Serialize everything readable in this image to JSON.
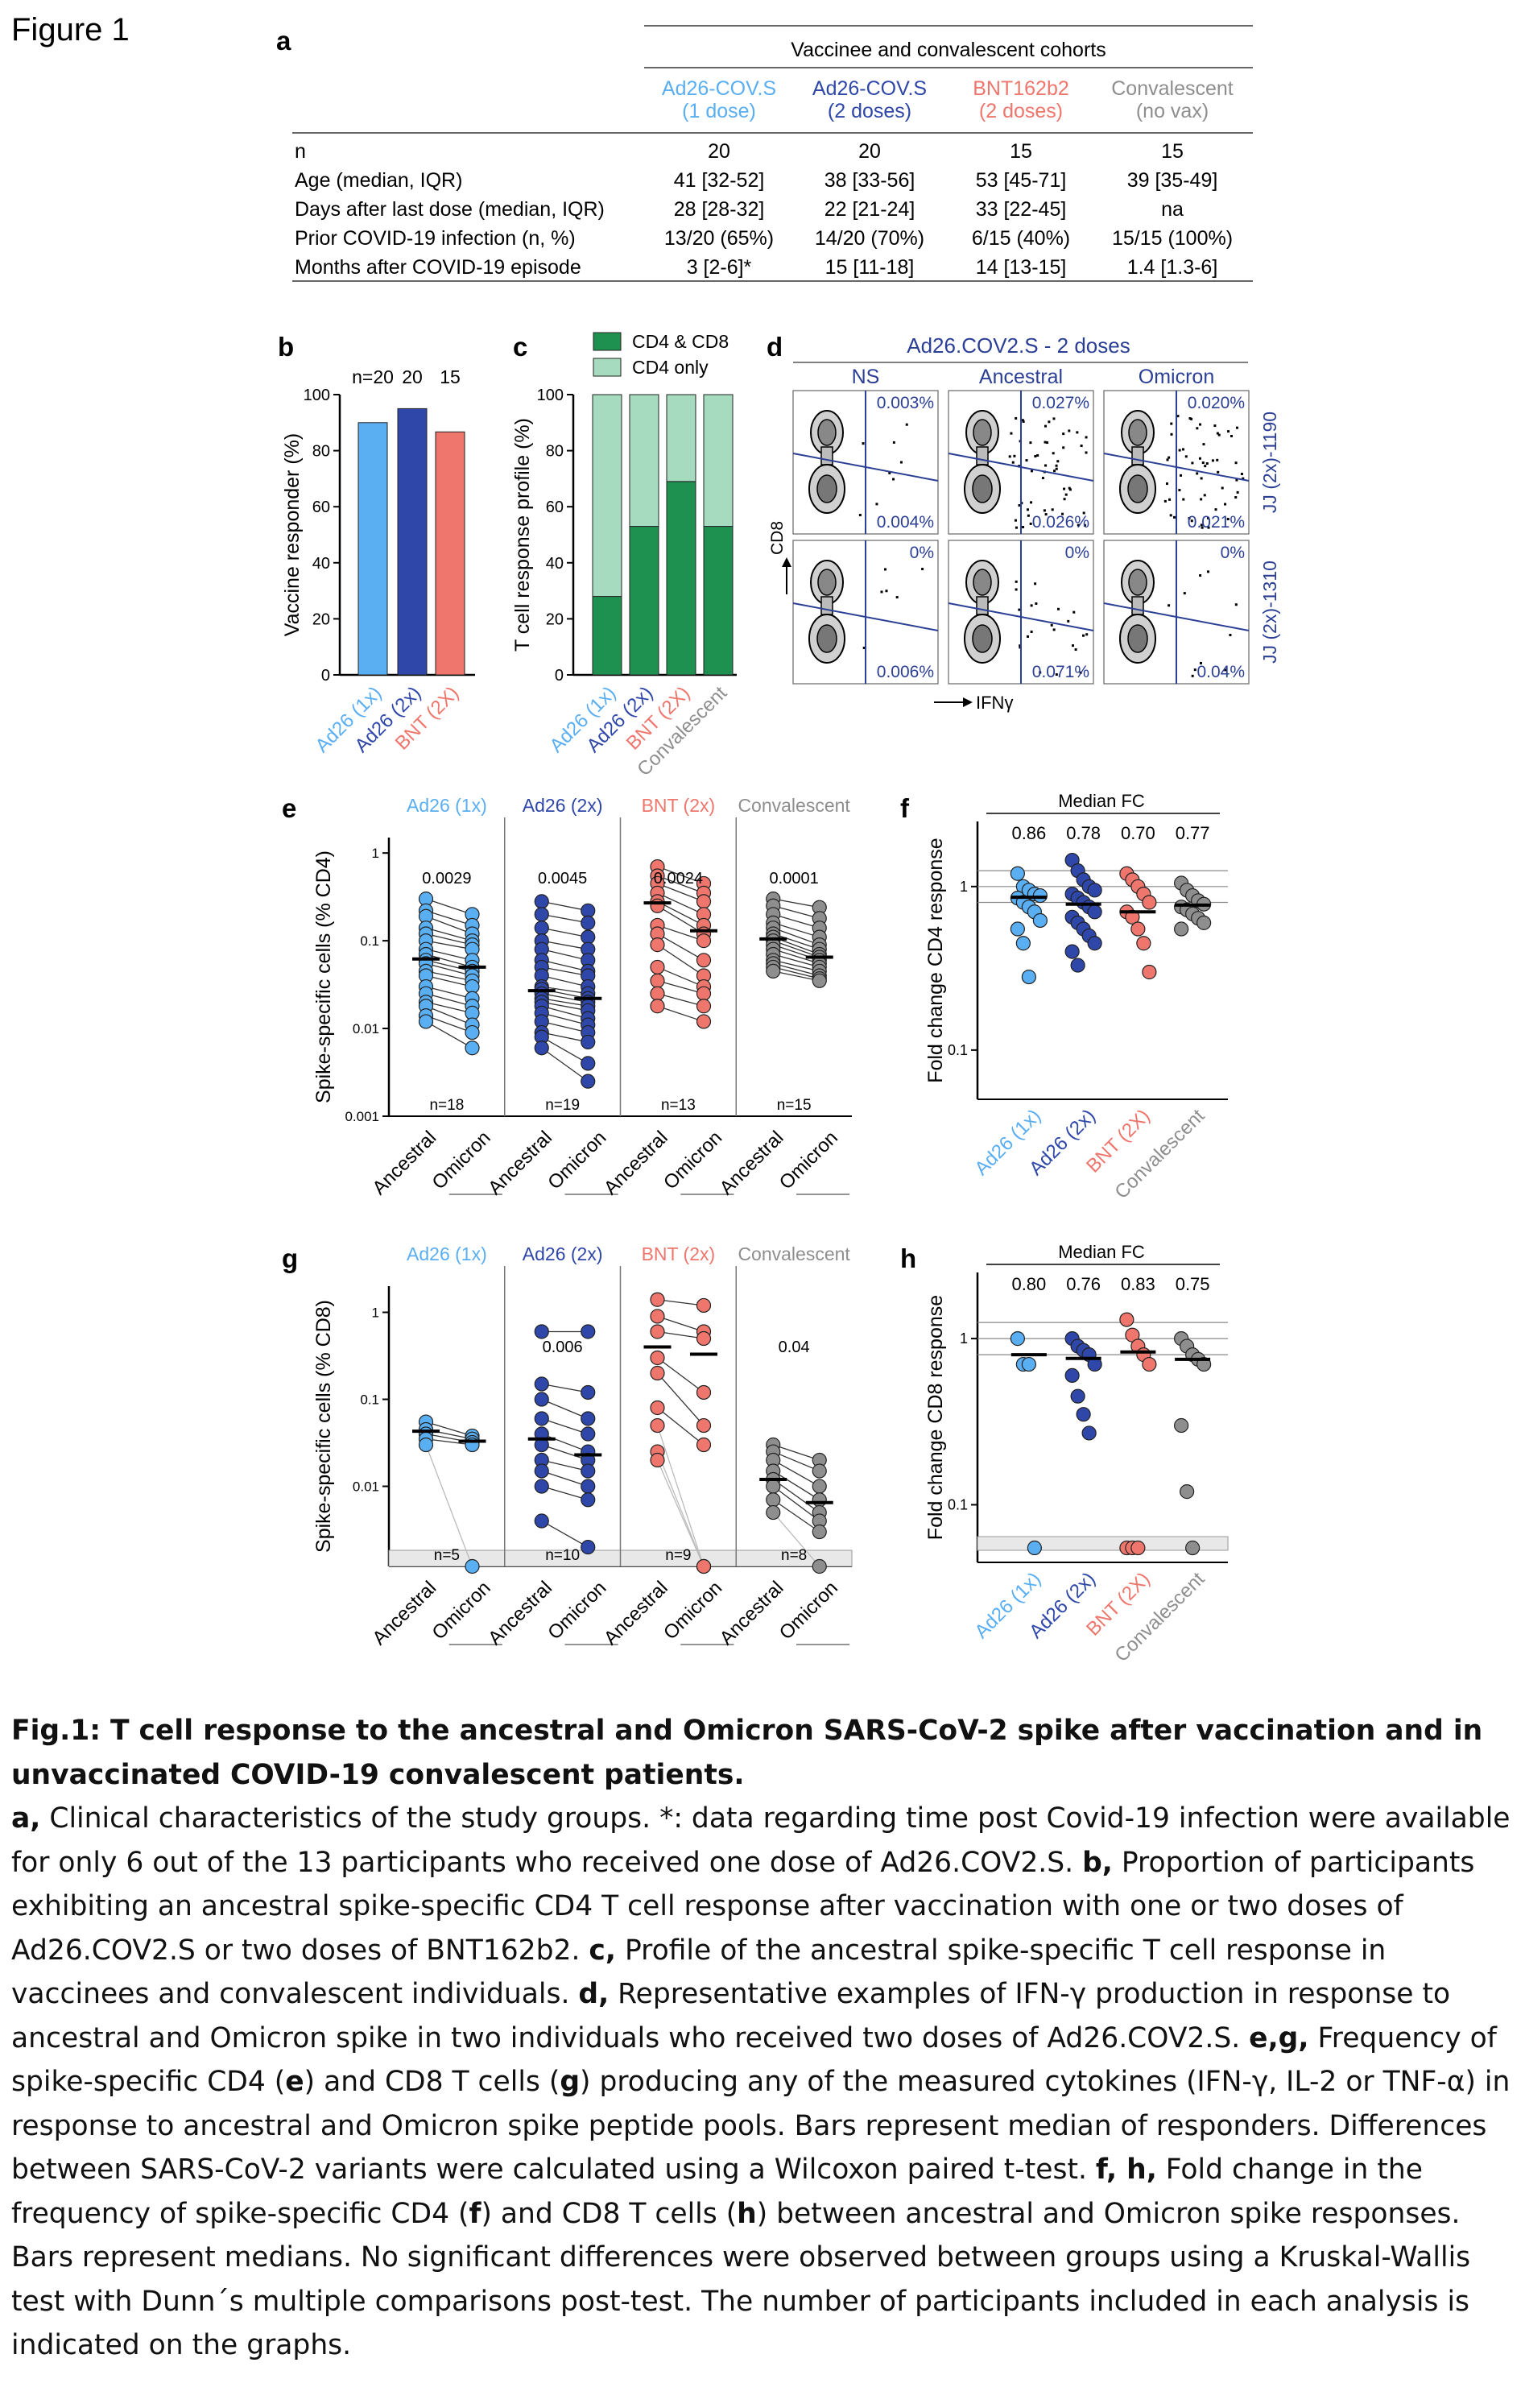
{
  "figure_label": "Figure 1",
  "colors": {
    "ad26_1x": "#5aaef2",
    "ad26_2x": "#2e47a8",
    "bnt": "#ee766c",
    "conv": "#8e8e8e",
    "cd4cd8": "#1e9150",
    "cd4only": "#a6dbbf",
    "gate": "#2b3f95"
  },
  "panel_a": {
    "label": "a",
    "header": "Vaccinee and convalescent cohorts",
    "columns": [
      {
        "name": "Ad26-COV.S",
        "sub": "(1 dose)",
        "color": "#5aaef2"
      },
      {
        "name": "Ad26-COV.S",
        "sub": "(2 doses)",
        "color": "#2e47a8"
      },
      {
        "name": "BNT162b2",
        "sub": "(2 doses)",
        "color": "#ee766c"
      },
      {
        "name": "Convalescent",
        "sub": "(no vax)",
        "color": "#8e8e8e"
      }
    ],
    "rows": [
      {
        "label": "n",
        "values": [
          "20",
          "20",
          "15",
          "15"
        ]
      },
      {
        "label": "Age (median, IQR)",
        "values": [
          "41 [32-52]",
          "38 [33-56]",
          "53 [45-71]",
          "39 [35-49]"
        ]
      },
      {
        "label": "Days after last dose (median, IQR)",
        "values": [
          "28 [28-32]",
          "22 [21-24]",
          "33 [22-45]",
          "na"
        ]
      },
      {
        "label": "Prior COVID-19 infection (n, %)",
        "values": [
          "13/20 (65%)",
          "14/20 (70%)",
          "6/15 (40%)",
          "15/15 (100%)"
        ]
      },
      {
        "label": "Months after COVID-19 episode",
        "values": [
          "3 [2-6]*",
          "15 [11-18]",
          "14 [13-15]",
          "1.4 [1.3-6]"
        ]
      }
    ]
  },
  "chart_data": [
    {
      "panel": "b",
      "type": "bar",
      "ylabel": "Vaccine responder (%)",
      "ylim": [
        0,
        100
      ],
      "yticks": [
        "0",
        "20",
        "40",
        "60",
        "80",
        "100"
      ],
      "categories": [
        "Ad26 (1x)",
        "Ad26 (2x)",
        "BNT (2X)"
      ],
      "values": [
        90,
        95,
        86.7
      ],
      "n_labels": [
        "n=20",
        "20",
        "15"
      ]
    },
    {
      "panel": "c",
      "type": "bar",
      "stacked": true,
      "ylabel": "T cell response profile (%)",
      "ylim": [
        0,
        100
      ],
      "yticks": [
        "0",
        "20",
        "40",
        "60",
        "80",
        "100"
      ],
      "categories": [
        "Ad26 (1x)",
        "Ad26 (2x)",
        "BNT (2X)",
        "Convalescent"
      ],
      "series": [
        {
          "name": "CD4 & CD8",
          "values": [
            28,
            53,
            69,
            53
          ]
        },
        {
          "name": "CD4 only",
          "values": [
            72,
            47,
            31,
            47
          ]
        }
      ]
    },
    {
      "panel": "d",
      "type": "scatter",
      "title": "Ad26.COV2.S - 2 doses",
      "columns": [
        "NS",
        "Ancestral",
        "Omicron"
      ],
      "rows": [
        "JJ (2x)-1190",
        "JJ (2x)-1310"
      ],
      "xlabel": "IFNγ",
      "ylabel": "CD8",
      "gates": [
        [
          {
            "upper": "0.003%",
            "lower": "0.004%"
          },
          {
            "upper": "0.027%",
            "lower": "0.026%"
          },
          {
            "upper": "0.020%",
            "lower": "0.021%"
          }
        ],
        [
          {
            "upper": "0%",
            "lower": "0.006%"
          },
          {
            "upper": "0%",
            "lower": "0.071%"
          },
          {
            "upper": "0%",
            "lower": "0.04%"
          }
        ]
      ]
    },
    {
      "panel": "e",
      "type": "scatter",
      "paired": true,
      "ylabel": "Spike-specific cells (% CD4)",
      "yscale": "log",
      "ylim": [
        0.001,
        1.5
      ],
      "yticks": [
        "0.001",
        "0.01",
        "0.1",
        "1"
      ],
      "groups": [
        {
          "name": "Ad26 (1x)",
          "p": "0.0029",
          "n": "n=18",
          "median": [
            0.062,
            0.05
          ],
          "ancestral": [
            0.3,
            0.22,
            0.19,
            0.14,
            0.12,
            0.1,
            0.08,
            0.07,
            0.06,
            0.055,
            0.045,
            0.04,
            0.03,
            0.025,
            0.02,
            0.018,
            0.014,
            0.012
          ],
          "omicron": [
            0.2,
            0.15,
            0.12,
            0.1,
            0.09,
            0.08,
            0.06,
            0.05,
            0.045,
            0.04,
            0.035,
            0.03,
            0.022,
            0.018,
            0.015,
            0.011,
            0.009,
            0.006
          ]
        },
        {
          "name": "Ad26 (2x)",
          "p": "0.0045",
          "n": "n=19",
          "median": [
            0.027,
            0.022
          ],
          "ancestral": [
            0.28,
            0.2,
            0.14,
            0.1,
            0.08,
            0.06,
            0.05,
            0.04,
            0.03,
            0.028,
            0.025,
            0.022,
            0.02,
            0.018,
            0.015,
            0.012,
            0.009,
            0.008,
            0.006
          ],
          "omicron": [
            0.22,
            0.16,
            0.11,
            0.08,
            0.06,
            0.045,
            0.04,
            0.03,
            0.025,
            0.022,
            0.02,
            0.018,
            0.016,
            0.013,
            0.011,
            0.009,
            0.007,
            0.004,
            0.0025
          ]
        },
        {
          "name": "BNT (2x)",
          "p": "0.0024",
          "n": "n=13",
          "median": [
            0.27,
            0.13
          ],
          "ancestral": [
            0.7,
            0.55,
            0.45,
            0.35,
            0.28,
            0.25,
            0.15,
            0.12,
            0.09,
            0.05,
            0.035,
            0.025,
            0.018
          ],
          "omicron": [
            0.45,
            0.35,
            0.28,
            0.2,
            0.15,
            0.12,
            0.1,
            0.06,
            0.04,
            0.03,
            0.025,
            0.018,
            0.012
          ]
        },
        {
          "name": "Convalescent",
          "p": "0.0001",
          "n": "n=15",
          "median": [
            0.105,
            0.065
          ],
          "ancestral": [
            0.3,
            0.25,
            0.2,
            0.16,
            0.14,
            0.12,
            0.11,
            0.1,
            0.09,
            0.08,
            0.07,
            0.06,
            0.055,
            0.05,
            0.045
          ],
          "omicron": [
            0.24,
            0.18,
            0.14,
            0.11,
            0.09,
            0.08,
            0.07,
            0.065,
            0.06,
            0.055,
            0.05,
            0.045,
            0.04,
            0.037,
            0.035
          ]
        }
      ]
    },
    {
      "panel": "f",
      "type": "scatter",
      "title": "Median FC",
      "ylabel": "Fold change CD4 response",
      "yscale": "log",
      "ylim": [
        0.05,
        2.5
      ],
      "yticks": [
        "0.1",
        "1"
      ],
      "categories": [
        "Ad26 (1x)",
        "Ad26 (2x)",
        "BNT (2X)",
        "Convalescent"
      ],
      "medians": [
        "0.86",
        "0.78",
        "0.70",
        "0.77"
      ],
      "median_values": [
        0.86,
        0.78,
        0.7,
        0.77
      ],
      "values": [
        [
          1.2,
          1.0,
          0.95,
          0.9,
          0.88,
          0.85,
          0.8,
          0.75,
          0.7,
          0.62,
          0.55,
          0.45,
          0.28
        ],
        [
          1.45,
          1.25,
          1.1,
          1.0,
          0.95,
          0.9,
          0.85,
          0.8,
          0.75,
          0.7,
          0.65,
          0.6,
          0.55,
          0.5,
          0.45,
          0.4,
          0.33
        ],
        [
          1.2,
          1.1,
          1.0,
          0.9,
          0.8,
          0.7,
          0.65,
          0.55,
          0.45,
          0.3
        ],
        [
          1.05,
          0.95,
          0.88,
          0.82,
          0.78,
          0.75,
          0.72,
          0.68,
          0.64,
          0.6,
          0.55
        ]
      ]
    },
    {
      "panel": "g",
      "type": "scatter",
      "paired": true,
      "ylabel": "Spike-specific cells (% CD8)",
      "yscale": "log",
      "ylim": [
        0.0012,
        2
      ],
      "yticks": [
        "0.01",
        "0.1",
        "1"
      ],
      "groups": [
        {
          "name": "Ad26 (1x)",
          "p": "",
          "n": "n=5",
          "median": [
            0.043,
            0.033
          ],
          "ancestral": [
            0.055,
            0.045,
            0.04,
            0.035,
            0.03
          ],
          "omicron": [
            0.038,
            0.035,
            0.032,
            0.03,
            0.0012
          ]
        },
        {
          "name": "Ad26 (2x)",
          "p": "0.006",
          "n": "n=10",
          "median": [
            0.035,
            0.023
          ],
          "ancestral": [
            0.6,
            0.15,
            0.1,
            0.06,
            0.04,
            0.03,
            0.02,
            0.015,
            0.01,
            0.004
          ],
          "omicron": [
            0.6,
            0.12,
            0.06,
            0.04,
            0.025,
            0.02,
            0.015,
            0.01,
            0.007,
            0.002
          ]
        },
        {
          "name": "BNT (2x)",
          "p": "",
          "n": "n=9",
          "median": [
            0.4,
            0.33
          ],
          "ancestral": [
            1.4,
            0.9,
            0.6,
            0.3,
            0.2,
            0.08,
            0.05,
            0.025,
            0.02
          ],
          "omicron": [
            1.2,
            0.6,
            0.5,
            0.12,
            0.05,
            0.03,
            0.0012,
            0.0012,
            0.0012
          ]
        },
        {
          "name": "Convalescent",
          "p": "0.04",
          "n": "n=8",
          "median": [
            0.012,
            0.0065
          ],
          "ancestral": [
            0.03,
            0.025,
            0.02,
            0.015,
            0.012,
            0.01,
            0.007,
            0.005
          ],
          "omicron": [
            0.02,
            0.015,
            0.01,
            0.007,
            0.005,
            0.004,
            0.003,
            0.0012
          ]
        }
      ]
    },
    {
      "panel": "h",
      "type": "scatter",
      "title": "Median FC",
      "ylabel": "Fold change CD8 response",
      "yscale": "log",
      "ylim": [
        0.045,
        2.5
      ],
      "yticks": [
        "0.1",
        "1"
      ],
      "categories": [
        "Ad26 (1x)",
        "Ad26 (2x)",
        "BNT (2X)",
        "Convalescent"
      ],
      "medians": [
        "0.80",
        "0.76",
        "0.83",
        "0.75"
      ],
      "median_values": [
        0.8,
        0.76,
        0.83,
        0.75
      ],
      "values": [
        [
          1.0,
          0.7,
          0.7,
          0.055
        ],
        [
          1.0,
          0.9,
          0.85,
          0.8,
          0.7,
          0.6,
          0.45,
          0.35,
          0.27
        ],
        [
          1.3,
          1.05,
          0.9,
          0.8,
          0.7,
          0.055,
          0.055,
          0.055
        ],
        [
          1.0,
          0.9,
          0.8,
          0.75,
          0.7,
          0.3,
          0.12,
          0.055
        ]
      ]
    }
  ],
  "caption": {
    "title": "Fig.1: T cell response to the ancestral and Omicron SARS-CoV-2 spike after vaccination and in unvaccinated COVID-19 convalescent patients.",
    "a_lbl": "a,",
    "a_txt": " Clinical characteristics of the study groups. *: data regarding time post Covid-19 infection were available for only 6 out of the 13 participants who received one dose of Ad26.COV2.S. ",
    "b_lbl": "b,",
    "b_txt": " Proportion of participants exhibiting an ancestral spike-specific CD4 T cell response after vaccination with one or two doses of Ad26.COV2.S or two doses of BNT162b2. ",
    "c_lbl": "c,",
    "c_txt": " Profile of the ancestral spike-specific T cell response in vaccinees and convalescent individuals. ",
    "d_lbl": "d,",
    "d_txt": " Representative examples of IFN-γ production in response to ancestral and Omicron spike in two individuals who received two doses of Ad26.COV2.S. ",
    "eg_lbl": "e,g,",
    "eg_txt1": " Frequency of spike-specific CD4 (",
    "e_lbl": "e",
    "eg_txt2": ") and CD8 T cells (",
    "g_lbl": "g",
    "eg_txt3": ") producing any of the measured cytokines (IFN-γ, IL-2 or TNF-α) in response to ancestral and Omicron spike peptide pools. Bars represent median of responders. Differences between SARS-CoV-2 variants were calculated using a Wilcoxon paired t-test. ",
    "fh_lbl": "f, h,",
    "fh_txt1": " Fold change in the frequency of spike-specific CD4 (",
    "f_lbl": "f",
    "fh_txt2": ") and CD8 T cells (",
    "h_lbl": "h",
    "fh_txt3": ") between ancestral and Omicron spike responses. Bars represent medians. No significant differences were observed between groups using a Kruskal-Wallis test with Dunn´s multiple comparisons post-test. The number of participants included in each analysis is indicated on the graphs."
  }
}
